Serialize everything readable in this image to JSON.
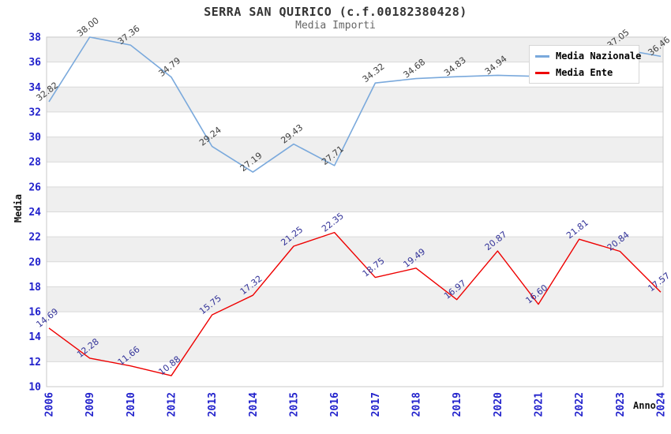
{
  "page": {
    "title": "SERRA SAN QUIRICO (c.f.00182380428)",
    "subtitle": "Media Importi"
  },
  "colors": {
    "nazionale_line": "#7aa9dc",
    "ente_line": "#ee0000",
    "tick_label": "#2222cc",
    "nazionale_point_label": "#404040",
    "ente_point_label": "#333399",
    "band_gray": "#efefef",
    "gridline": "#d9d9d9",
    "plot_border": "#c9c9c9"
  },
  "chart_data": {
    "type": "line",
    "title": "SERRA SAN QUIRICO (c.f.00182380428)",
    "subtitle": "Media Importi",
    "xlabel": "Anno",
    "ylabel": "Media",
    "ylim": [
      10,
      38
    ],
    "ytick_step": 2,
    "grid": true,
    "banded_background": true,
    "legend_position": "top-right",
    "categories": [
      "2006",
      "2009",
      "2010",
      "2012",
      "2013",
      "2014",
      "2015",
      "2016",
      "2017",
      "2018",
      "2019",
      "2020",
      "2021",
      "2022",
      "2023",
      "2024"
    ],
    "series": [
      {
        "name": "Media Nazionale",
        "color": "#7aa9dc",
        "label_color": "#404040",
        "values": [
          32.82,
          38.0,
          37.36,
          34.79,
          29.24,
          27.19,
          29.43,
          27.71,
          34.32,
          34.68,
          34.83,
          34.94,
          34.85,
          35.9,
          37.05,
          36.46
        ],
        "labels": [
          "32.82",
          "38.00",
          "37.36",
          "34.79",
          "29.24",
          "27.19",
          "29.43",
          "27.71",
          "34.32",
          "34.68",
          "34.83",
          "34.94",
          "",
          "",
          "37.05",
          "36.46"
        ]
      },
      {
        "name": "Media Ente",
        "color": "#ee0000",
        "label_color": "#333399",
        "values": [
          14.69,
          12.28,
          11.66,
          10.88,
          15.75,
          17.32,
          21.25,
          22.35,
          18.75,
          19.49,
          16.97,
          20.87,
          16.6,
          21.81,
          20.84,
          17.57
        ],
        "labels": [
          "14.69",
          "12.28",
          "11.66",
          "10.88",
          "15.75",
          "17.32",
          "21.25",
          "22.35",
          "18.75",
          "19.49",
          "16.97",
          "20.87",
          "16.60",
          "21.81",
          "20.84",
          "17.57"
        ]
      }
    ]
  }
}
